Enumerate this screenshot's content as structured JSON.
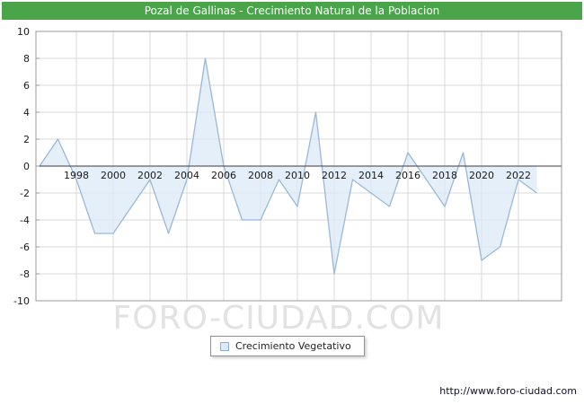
{
  "header": {
    "title": "Pozal de Gallinas - Crecimiento Natural de la Poblacion",
    "bg_color": "#4aa44a",
    "text_color": "#ffffff"
  },
  "watermark": "FORO-CIUDAD.COM",
  "legend": {
    "label": "Crecimiento Vegetativo",
    "swatch_fill": "#dce9f7",
    "swatch_border": "#8cb0d8"
  },
  "footer": {
    "url": "http://www.foro-ciudad.com"
  },
  "chart_data": {
    "type": "area",
    "title": "Pozal de Gallinas - Crecimiento Natural de la Poblacion",
    "series_name": "Crecimiento Vegetativo",
    "x": [
      1996,
      1997,
      1998,
      1999,
      2000,
      2001,
      2002,
      2003,
      2004,
      2005,
      2006,
      2007,
      2008,
      2009,
      2010,
      2011,
      2012,
      2013,
      2014,
      2015,
      2016,
      2017,
      2018,
      2019,
      2020,
      2021,
      2022,
      2023
    ],
    "values": [
      0,
      2,
      -1,
      -5,
      -5,
      -3,
      -1,
      -5,
      -1,
      8,
      0,
      -4,
      -4,
      -1,
      -3,
      4,
      -8,
      -1,
      -2,
      -3,
      1,
      -1,
      -3,
      1,
      -7,
      -6,
      -1,
      -2
    ],
    "ylim": [
      -10,
      10
    ],
    "yticks": [
      -10,
      -8,
      -6,
      -4,
      -2,
      0,
      2,
      4,
      6,
      8,
      10
    ],
    "xticks": [
      1998,
      2000,
      2002,
      2004,
      2006,
      2008,
      2010,
      2012,
      2014,
      2016,
      2018,
      2020,
      2022
    ],
    "baseline": 0,
    "grid": true,
    "legend_position": "bottom-center",
    "line_color": "#9ab8d8",
    "fill_color": "#dce9f7",
    "grid_color": "#d8d8d8",
    "axis_color": "#9a9a9a",
    "zero_line_color": "#3a3a3a",
    "tick_label_color": "#1a1a1a"
  }
}
